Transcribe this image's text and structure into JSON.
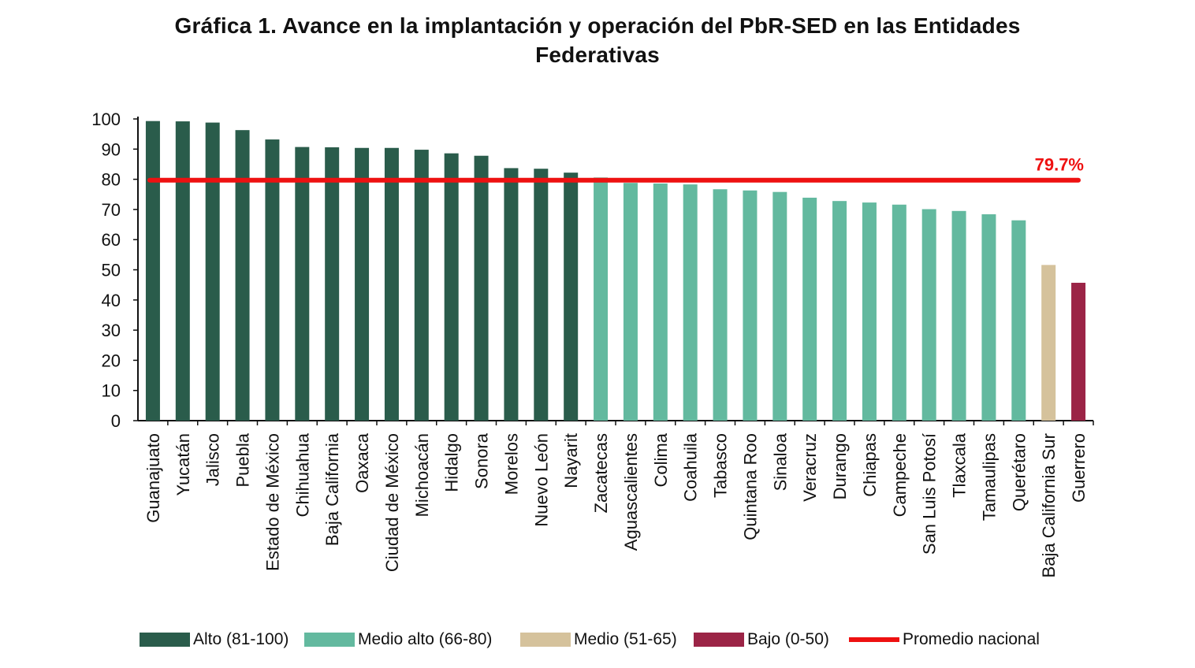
{
  "title": {
    "line1": "Gráfica 1. Avance en la implantación y operación del PbR-SED en las Entidades",
    "line2": "Federativas"
  },
  "colors": {
    "alto": "#2a5c4b",
    "medio_alto": "#63b99f",
    "medio": "#d5c29c",
    "bajo": "#9b2446",
    "promedio": "#ee1111",
    "axis": "#111111"
  },
  "legend": [
    {
      "key": "alto",
      "label": "Alto (81-100)"
    },
    {
      "key": "medio_alto",
      "label": "Medio alto (66-80)"
    },
    {
      "key": "medio",
      "label": "Medio (51-65)"
    },
    {
      "key": "bajo",
      "label": "Bajo (0-50)"
    },
    {
      "key": "promedio",
      "label": "Promedio nacional"
    }
  ],
  "chart_data": {
    "type": "bar",
    "ylim": [
      0,
      100
    ],
    "yticks": [
      0,
      10,
      20,
      30,
      40,
      50,
      60,
      70,
      80,
      90,
      100
    ],
    "grid": false,
    "legend_position": "bottom",
    "categories": [
      "Guanajuato",
      "Yucatán",
      "Jalisco",
      "Puebla",
      "Estado de México",
      "Chihuahua",
      "Baja California",
      "Oaxaca",
      "Ciudad de México",
      "Michoacán",
      "Hidalgo",
      "Sonora",
      "Morelos",
      "Nuevo León",
      "Nayarit",
      "Zacatecas",
      "Aguascalientes",
      "Colima",
      "Coahuila",
      "Tabasco",
      "Quintana Roo",
      "Sinaloa",
      "Veracruz",
      "Durango",
      "Chiapas",
      "Campeche",
      "San Luis Potosí",
      "Tlaxcala",
      "Tamaulipas",
      "Querétaro",
      "Baja California Sur",
      "Guerrero"
    ],
    "values": [
      99.3,
      99.2,
      98.8,
      96.3,
      93.2,
      90.7,
      90.6,
      90.4,
      90.4,
      89.8,
      88.6,
      87.8,
      83.7,
      83.5,
      82.2,
      80.6,
      78.8,
      78.6,
      78.3,
      76.7,
      76.3,
      75.8,
      73.9,
      72.8,
      72.3,
      71.6,
      70.1,
      69.5,
      68.4,
      66.4,
      51.6,
      45.7
    ],
    "levels": [
      "alto",
      "alto",
      "alto",
      "alto",
      "alto",
      "alto",
      "alto",
      "alto",
      "alto",
      "alto",
      "alto",
      "alto",
      "alto",
      "alto",
      "alto",
      "medio_alto",
      "medio_alto",
      "medio_alto",
      "medio_alto",
      "medio_alto",
      "medio_alto",
      "medio_alto",
      "medio_alto",
      "medio_alto",
      "medio_alto",
      "medio_alto",
      "medio_alto",
      "medio_alto",
      "medio_alto",
      "medio_alto",
      "medio",
      "bajo"
    ],
    "reference_line": {
      "value": 79.7,
      "label": "79.7%"
    }
  }
}
